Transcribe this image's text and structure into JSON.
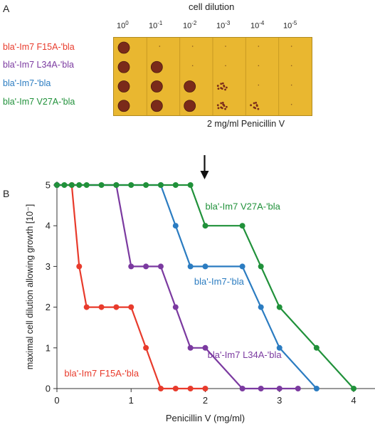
{
  "panel_a": {
    "label": "A",
    "title": "cell dilution",
    "dilutions": [
      {
        "base": "10",
        "exp": "0"
      },
      {
        "base": "10",
        "exp": "-1"
      },
      {
        "base": "10",
        "exp": "-2"
      },
      {
        "base": "10",
        "exp": "-3"
      },
      {
        "base": "10",
        "exp": "-4"
      },
      {
        "base": "10",
        "exp": "-5"
      }
    ],
    "strains": [
      {
        "label": "bla'-Im7 F15A-'bla",
        "color": "#e83b2c"
      },
      {
        "label": "bla'-Im7 L34A-'bla",
        "color": "#7b3aa0"
      },
      {
        "label": "bla'-Im7-'bla",
        "color": "#2b7cc1"
      },
      {
        "label": "bla'-Im7 V27A-'bla",
        "color": "#20913a"
      }
    ],
    "plate_color": "#e9b730",
    "colony_color": "#7a2a1a",
    "growth": [
      [
        1,
        0,
        0,
        0,
        0,
        0
      ],
      [
        1,
        1,
        0,
        0,
        0,
        0
      ],
      [
        1,
        1,
        1,
        0.7,
        0,
        0
      ],
      [
        1,
        1,
        1,
        0.8,
        0.6,
        0
      ]
    ],
    "concentration": "2 mg/ml Penicillin V"
  },
  "panel_b": {
    "label": "B",
    "arrow_icon": "down-arrow-icon"
  },
  "chart_data": {
    "type": "line",
    "xlabel": "Penicillin V (mg/ml)",
    "ylabel": "maximal cell dilution allowing growth [10⁻]",
    "xlim": [
      0,
      4.3
    ],
    "ylim": [
      0,
      5
    ],
    "xticks": [
      "0",
      "1",
      "2",
      "3",
      "4"
    ],
    "yticks": [
      "0",
      "1",
      "2",
      "3",
      "4",
      "5"
    ],
    "arrow_x": 2,
    "series": [
      {
        "name": "bla'-Im7 F15A-'bla",
        "color": "#e83b2c",
        "label_at": [
          0.1,
          0.3
        ],
        "points": [
          [
            0,
            5
          ],
          [
            0.2,
            5
          ],
          [
            0.3,
            3
          ],
          [
            0.4,
            2
          ],
          [
            0.6,
            2
          ],
          [
            0.8,
            2
          ],
          [
            1.0,
            2
          ],
          [
            1.2,
            1
          ],
          [
            1.4,
            0
          ],
          [
            1.6,
            0
          ],
          [
            1.8,
            0
          ],
          [
            2.0,
            0
          ]
        ]
      },
      {
        "name": "bla'-Im7 L34A-'bla",
        "color": "#7b3aa0",
        "label_at": [
          2.03,
          0.75
        ],
        "points": [
          [
            0,
            5
          ],
          [
            0.8,
            5
          ],
          [
            1.0,
            3
          ],
          [
            1.2,
            3
          ],
          [
            1.4,
            3
          ],
          [
            1.6,
            2
          ],
          [
            1.8,
            1
          ],
          [
            2.0,
            1
          ],
          [
            2.5,
            0
          ],
          [
            2.75,
            0
          ],
          [
            3.0,
            0
          ],
          [
            3.25,
            0
          ]
        ]
      },
      {
        "name": "bla'-Im7-'bla",
        "color": "#2b7cc1",
        "label_at": [
          1.85,
          2.55
        ],
        "points": [
          [
            0,
            5
          ],
          [
            1.4,
            5
          ],
          [
            1.6,
            4
          ],
          [
            1.8,
            3
          ],
          [
            2.0,
            3
          ],
          [
            2.5,
            3
          ],
          [
            2.75,
            2
          ],
          [
            3.0,
            1
          ],
          [
            3.5,
            0
          ]
        ]
      },
      {
        "name": "bla'-Im7 V27A-'bla",
        "color": "#20913a",
        "label_at": [
          2.0,
          4.4
        ],
        "points": [
          [
            0,
            5
          ],
          [
            0.1,
            5
          ],
          [
            0.2,
            5
          ],
          [
            0.3,
            5
          ],
          [
            0.4,
            5
          ],
          [
            0.6,
            5
          ],
          [
            0.8,
            5
          ],
          [
            1.0,
            5
          ],
          [
            1.2,
            5
          ],
          [
            1.4,
            5
          ],
          [
            1.6,
            5
          ],
          [
            1.8,
            5
          ],
          [
            2.0,
            4
          ],
          [
            2.5,
            4
          ],
          [
            2.75,
            3
          ],
          [
            3.0,
            2
          ],
          [
            3.5,
            1
          ],
          [
            4.0,
            0
          ]
        ]
      }
    ]
  }
}
